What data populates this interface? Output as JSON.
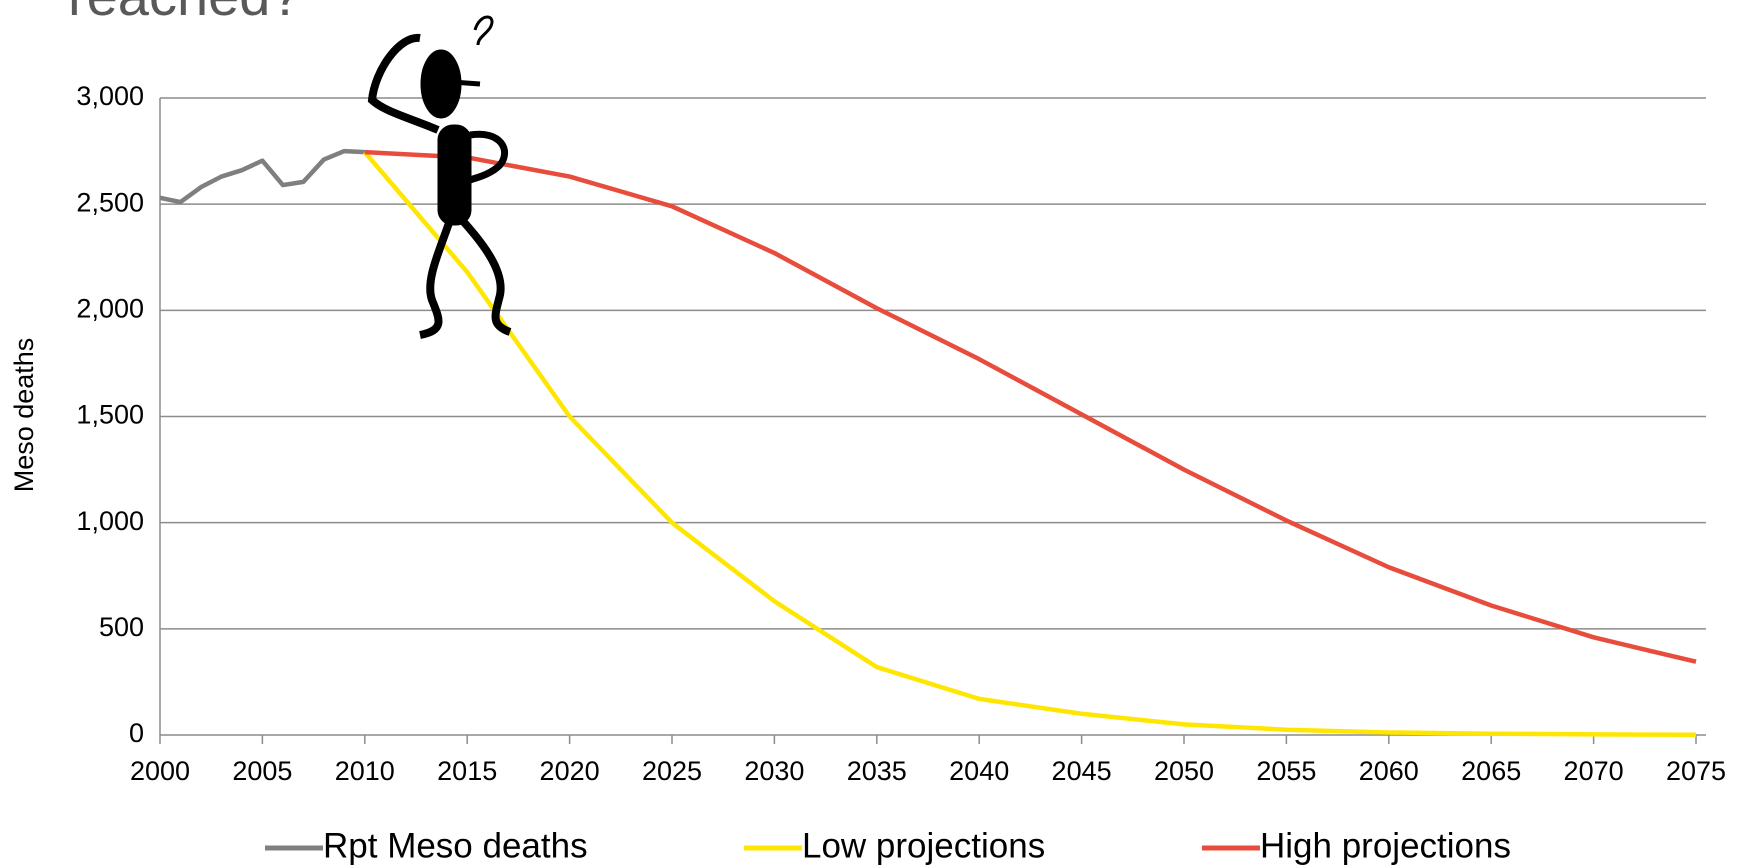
{
  "chart_data": {
    "type": "line",
    "title": "reached?",
    "y_label": "Meso deaths",
    "xlim": [
      2000,
      2075
    ],
    "xticks": [
      2000,
      2005,
      2010,
      2015,
      2020,
      2025,
      2030,
      2035,
      2040,
      2045,
      2050,
      2055,
      2060,
      2065,
      2070,
      2075
    ],
    "ylim": [
      0,
      3000
    ],
    "yticks": [
      0,
      500,
      {
        "value": 1000,
        "label": "1,000"
      },
      {
        "value": 1500,
        "label": "1,500"
      },
      {
        "value": 2000,
        "label": "2,000"
      },
      {
        "value": 2500,
        "label": "2,500"
      },
      {
        "value": 3000,
        "label": "3,000"
      }
    ],
    "grid": true,
    "legend": "bottom",
    "series": [
      {
        "name": "Rpt Meso deaths",
        "color": "#7f7f7f",
        "x": [
          2000,
          2001,
          2002,
          2003,
          2004,
          2005,
          2006,
          2007,
          2008,
          2009,
          2010
        ],
        "values": [
          2530,
          2510,
          2580,
          2630,
          2660,
          2705,
          2590,
          2605,
          2710,
          2750,
          2745
        ]
      },
      {
        "name": "Low projections",
        "color": "#ffe600",
        "x": [
          2010,
          2015,
          2020,
          2025,
          2030,
          2035,
          2040,
          2045,
          2050,
          2055,
          2060,
          2065,
          2070,
          2075
        ],
        "values": [
          2745,
          2180,
          1500,
          1000,
          630,
          320,
          170,
          100,
          50,
          25,
          12,
          6,
          3,
          1
        ]
      },
      {
        "name": "High projections",
        "color": "#e84c3d",
        "x": [
          2010,
          2015,
          2020,
          2025,
          2030,
          2035,
          2040,
          2045,
          2050,
          2055,
          2060,
          2065,
          2070,
          2075
        ],
        "values": [
          2745,
          2720,
          2630,
          2490,
          2270,
          2010,
          1770,
          1510,
          1250,
          1010,
          790,
          610,
          460,
          345
        ]
      }
    ]
  }
}
